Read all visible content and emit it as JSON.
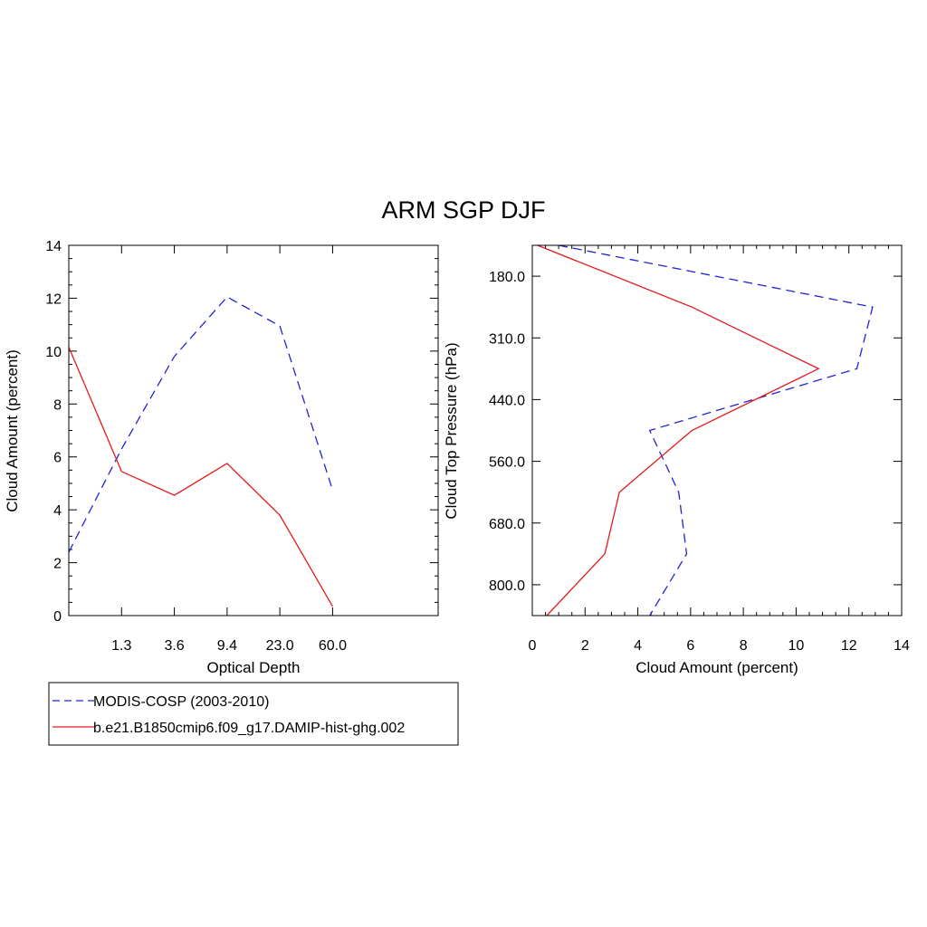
{
  "figure_title": "ARM SGP DJF",
  "colors": {
    "obs": "#2323d6",
    "model": "#e41a1c",
    "axes": "#000000"
  },
  "legend": {
    "entries": [
      {
        "label": "MODIS-COSP (2003-2010)",
        "style": "dashed",
        "color": "#2323d6"
      },
      {
        "label": "b.e21.B1850cmip6.f09_g17.DAMIP-hist-ghg.002",
        "style": "solid",
        "color": "#e41a1c"
      }
    ]
  },
  "chart_data": [
    {
      "type": "line",
      "xlabel": "Optical Depth",
      "ylabel": "Cloud Amount (percent)",
      "x_tick_labels": [
        "1.3",
        "3.6",
        "9.4",
        "23.0",
        "60.0"
      ],
      "x_bins": 7,
      "ylim": [
        0,
        14
      ],
      "y_ticks": [
        "0",
        "2",
        "4",
        "6",
        "8",
        "10",
        "12",
        "14"
      ],
      "series": [
        {
          "name": "MODIS-COSP (2003-2010)",
          "values": [
            2.4,
            6.3,
            9.8,
            12.05,
            10.95,
            4.75
          ],
          "style": "dashed",
          "color": "#2323d6"
        },
        {
          "name": "b.e21.B1850cmip6.f09_g17.DAMIP-hist-ghg.002",
          "values": [
            10.15,
            5.45,
            4.55,
            5.75,
            3.8,
            0.35
          ],
          "style": "solid",
          "color": "#e41a1c"
        }
      ]
    },
    {
      "type": "line",
      "xlabel": "Cloud Amount (percent)",
      "ylabel": "Cloud Top Pressure (hPa)",
      "xlim": [
        0,
        14
      ],
      "x_ticks": [
        "0",
        "2",
        "4",
        "6",
        "8",
        "10",
        "12",
        "14"
      ],
      "y_tick_labels": [
        "180.0",
        "310.0",
        "440.0",
        "560.0",
        "680.0",
        "800.0"
      ],
      "y_bins": 6,
      "series": [
        {
          "name": "MODIS-COSP (2003-2010)",
          "values": [
            1.0,
            12.9,
            12.3,
            4.45,
            5.55,
            5.85,
            4.45
          ],
          "style": "dashed",
          "color": "#2323d6"
        },
        {
          "name": "b.e21.B1850cmip6.f09_g17.DAMIP-hist-ghg.002",
          "values": [
            0.2,
            6.05,
            10.85,
            6.05,
            3.3,
            2.75,
            0.55
          ],
          "style": "solid",
          "color": "#e41a1c"
        }
      ]
    }
  ]
}
